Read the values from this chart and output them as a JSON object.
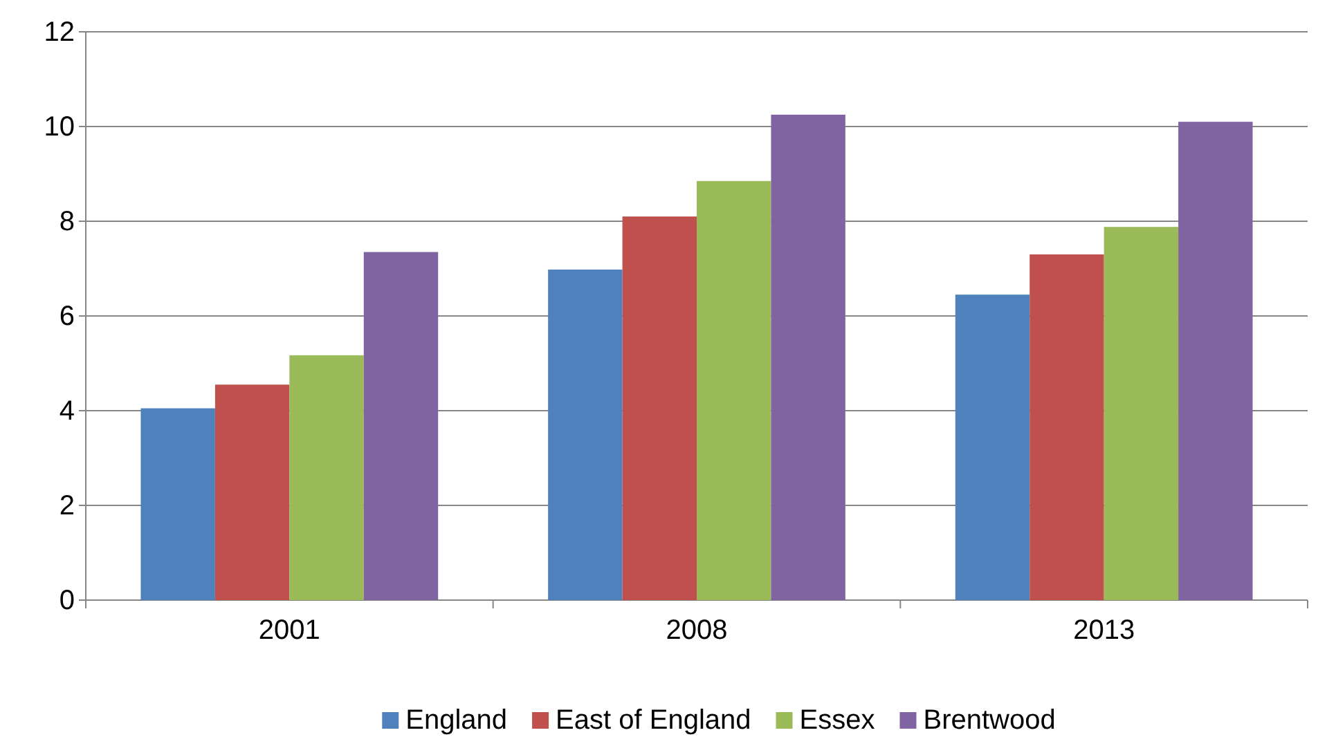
{
  "chart_data": {
    "type": "bar",
    "categories": [
      "2001",
      "2008",
      "2013"
    ],
    "series": [
      {
        "name": "England",
        "color": "#4f81bd",
        "values": [
          4.05,
          6.98,
          6.45
        ]
      },
      {
        "name": "East of England",
        "color": "#c0504d",
        "values": [
          4.55,
          8.1,
          7.3
        ]
      },
      {
        "name": "Essex",
        "color": "#9bbb59",
        "values": [
          5.17,
          8.85,
          7.88
        ]
      },
      {
        "name": "Brentwood",
        "color": "#8064a2",
        "values": [
          7.35,
          10.25,
          10.1
        ]
      }
    ],
    "ylim": [
      0,
      12
    ],
    "yticks": [
      0,
      2,
      4,
      6,
      8,
      10,
      12
    ],
    "grid": "y",
    "legend": "bottom"
  }
}
